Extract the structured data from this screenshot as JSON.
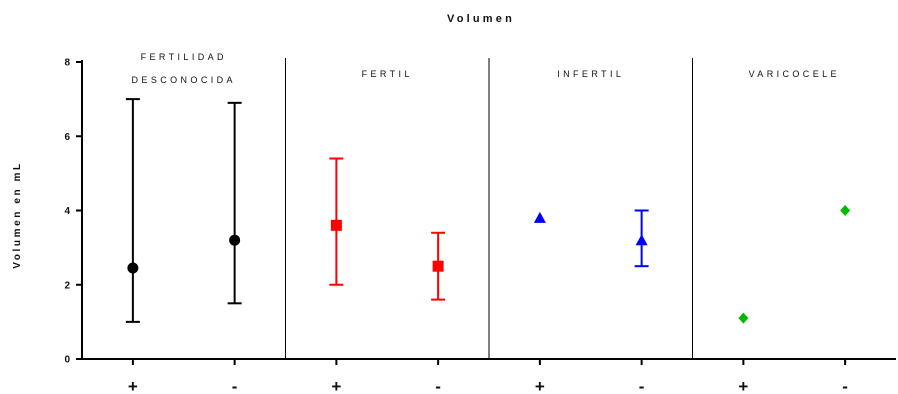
{
  "chart_data": {
    "type": "scatter",
    "title": "Volumen",
    "xlabel": "",
    "ylabel": "Volumen en mL",
    "ylim": [
      0,
      8
    ],
    "yticks": [
      "0",
      "2",
      "4",
      "6",
      "8"
    ],
    "grid": false,
    "error_bars": true,
    "groups": [
      {
        "label_lines": [
          "FERTILIDAD",
          "DESCONOCIDA"
        ],
        "color": "#000000",
        "marker": "circle",
        "points": [
          {
            "x": "+",
            "y": 2.45,
            "low": 1.0,
            "high": 7.0
          },
          {
            "x": "-",
            "y": 3.2,
            "low": 1.5,
            "high": 6.9
          }
        ]
      },
      {
        "label_lines": [
          "FERTIL"
        ],
        "color": "#ff0000",
        "marker": "square",
        "points": [
          {
            "x": "+",
            "y": 3.6,
            "low": 2.0,
            "high": 5.4
          },
          {
            "x": "-",
            "y": 2.5,
            "low": 1.6,
            "high": 3.4
          }
        ]
      },
      {
        "label_lines": [
          "INFERTIL"
        ],
        "color": "#0000ff",
        "marker": "triangle",
        "points": [
          {
            "x": "+",
            "y": 3.8
          },
          {
            "x": "-",
            "y": 3.2,
            "low": 2.5,
            "high": 4.0
          }
        ]
      },
      {
        "label_lines": [
          "VARICOCELE"
        ],
        "color": "#00bb00",
        "marker": "diamond",
        "points": [
          {
            "x": "+",
            "y": 1.1
          },
          {
            "x": "-",
            "y": 4.0
          }
        ]
      }
    ]
  }
}
